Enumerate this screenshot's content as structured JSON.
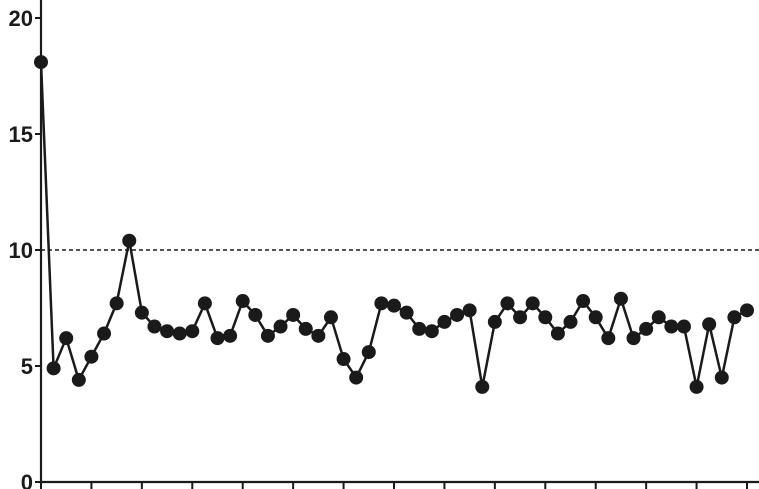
{
  "chart_data": {
    "type": "line",
    "title": "",
    "xlabel": "",
    "ylabel": "",
    "ylim": [
      0,
      20
    ],
    "yticks": [
      "0",
      "5",
      "10",
      "15",
      "20"
    ],
    "x_minor_tick_every": 4,
    "reference_line": {
      "y": 10,
      "style": "dashed"
    },
    "grid": false,
    "legend": "none",
    "colors": {
      "line": "#1a1a1a",
      "marker": "#1a1a1a",
      "axis": "#1a1a1a"
    },
    "series": [
      {
        "values": [
          18.1,
          4.9,
          6.2,
          4.4,
          5.4,
          6.4,
          7.7,
          10.4,
          7.3,
          6.7,
          6.5,
          6.4,
          6.5,
          7.7,
          6.2,
          6.3,
          7.8,
          7.2,
          6.3,
          6.7,
          7.2,
          6.6,
          6.3,
          7.1,
          5.3,
          4.5,
          5.6,
          7.7,
          7.6,
          7.3,
          6.6,
          6.5,
          6.9,
          7.2,
          7.4,
          4.1,
          6.9,
          7.7,
          7.1,
          7.7,
          7.1,
          6.4,
          6.9,
          7.8,
          7.1,
          6.2,
          7.9,
          6.2,
          6.6,
          7.1,
          6.7,
          6.7,
          4.1,
          6.8,
          4.5,
          7.1,
          7.4
        ]
      }
    ]
  }
}
